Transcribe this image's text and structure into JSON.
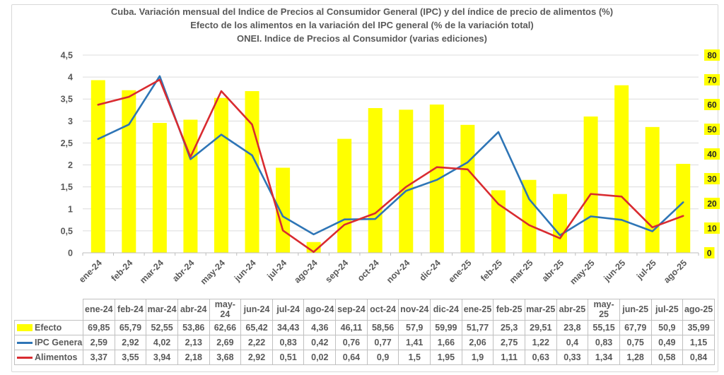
{
  "title": {
    "line1": "Cuba. Variación mensual del Indice de Precios al Consumidor General (IPC) y del índice de precio de alimentos (%)",
    "line2": "Efecto de los alimentos en la variación del IPC general (% de la variación total)",
    "line3": "ONEI. Indice de Precios al Consumidor (varias ediciones)"
  },
  "colors": {
    "efecto": "#FFFF00",
    "ipc_general": "#2E75B6",
    "alimentos": "#D92B30",
    "grid": "#DCDCDC",
    "axis_line": "#BDBDBD",
    "axis_text": "#595959",
    "right_axis_highlight": "#FFFF00"
  },
  "chart_data": {
    "type": "combo-bar-line",
    "categories": [
      "ene-24",
      "feb-24",
      "mar-24",
      "abr-24",
      "may-24",
      "jun-24",
      "jul-24",
      "ago-24",
      "sep-24",
      "oct-24",
      "nov-24",
      "dic-24",
      "ene-25",
      "feb-25",
      "mar-25",
      "abr-25",
      "may-25",
      "jun-25",
      "jul-25",
      "ago-25"
    ],
    "series": [
      {
        "name": "Efecto",
        "type": "bar",
        "axis": "right",
        "color": "efecto",
        "values": [
          69.85,
          65.79,
          52.55,
          53.86,
          62.66,
          65.42,
          34.43,
          4.36,
          46.11,
          58.56,
          57.9,
          59.99,
          51.77,
          25.3,
          29.51,
          23.8,
          55.15,
          67.79,
          50.9,
          35.99
        ]
      },
      {
        "name": "IPC General",
        "type": "line",
        "axis": "left",
        "color": "ipc_general",
        "values": [
          2.59,
          2.92,
          4.02,
          2.13,
          2.69,
          2.22,
          0.83,
          0.42,
          0.76,
          0.77,
          1.41,
          1.66,
          2.06,
          2.75,
          1.22,
          0.4,
          0.83,
          0.75,
          0.49,
          1.15
        ]
      },
      {
        "name": "Alimentos",
        "type": "line",
        "axis": "left",
        "color": "alimentos",
        "values": [
          3.37,
          3.55,
          3.94,
          2.18,
          3.68,
          2.92,
          0.51,
          0.02,
          0.64,
          0.9,
          1.5,
          1.95,
          1.9,
          1.11,
          0.63,
          0.33,
          1.34,
          1.28,
          0.58,
          0.84
        ]
      }
    ],
    "left_axis": {
      "min": 0,
      "max": 4.5,
      "step": 0.5,
      "tick_labels": [
        "0",
        "0,5",
        "1",
        "1,5",
        "2",
        "2,5",
        "3",
        "3,5",
        "4",
        "4,5"
      ]
    },
    "right_axis": {
      "min": 0,
      "max": 80,
      "step": 10,
      "tick_labels": [
        "0",
        "10",
        "20",
        "30",
        "40",
        "50",
        "60",
        "70",
        "80"
      ]
    },
    "grid": true,
    "legend_position": "table-left"
  },
  "table": {
    "header": [
      "",
      "ene-24",
      "feb-24",
      "mar-24",
      "abr-24",
      "may-24",
      "jun-24",
      "jul-24",
      "ago-24",
      "sep-24",
      "oct-24",
      "nov-24",
      "dic-24",
      "ene-25",
      "feb-25",
      "mar-25",
      "abr-25",
      "may-25",
      "jun-25",
      "jul-25",
      "ago-25"
    ],
    "rows": [
      {
        "label": "Efecto",
        "swatch": "bar",
        "color": "efecto",
        "values": [
          "69,85",
          "65,79",
          "52,55",
          "53,86",
          "62,66",
          "65,42",
          "34,43",
          "4,36",
          "46,11",
          "58,56",
          "57,9",
          "59,99",
          "51,77",
          "25,3",
          "29,51",
          "23,8",
          "55,15",
          "67,79",
          "50,9",
          "35,99"
        ]
      },
      {
        "label": "IPC General",
        "swatch": "line",
        "color": "ipc_general",
        "values": [
          "2,59",
          "2,92",
          "4,02",
          "2,13",
          "2,69",
          "2,22",
          "0,83",
          "0,42",
          "0,76",
          "0,77",
          "1,41",
          "1,66",
          "2,06",
          "2,75",
          "1,22",
          "0,4",
          "0,83",
          "0,75",
          "0,49",
          "1,15"
        ]
      },
      {
        "label": "Alimentos",
        "swatch": "line",
        "color": "alimentos",
        "values": [
          "3,37",
          "3,55",
          "3,94",
          "2,18",
          "3,68",
          "2,92",
          "0,51",
          "0,02",
          "0,64",
          "0,9",
          "1,5",
          "1,95",
          "1,9",
          "1,11",
          "0,63",
          "0,33",
          "1,34",
          "1,28",
          "0,58",
          "0,84"
        ]
      }
    ]
  }
}
